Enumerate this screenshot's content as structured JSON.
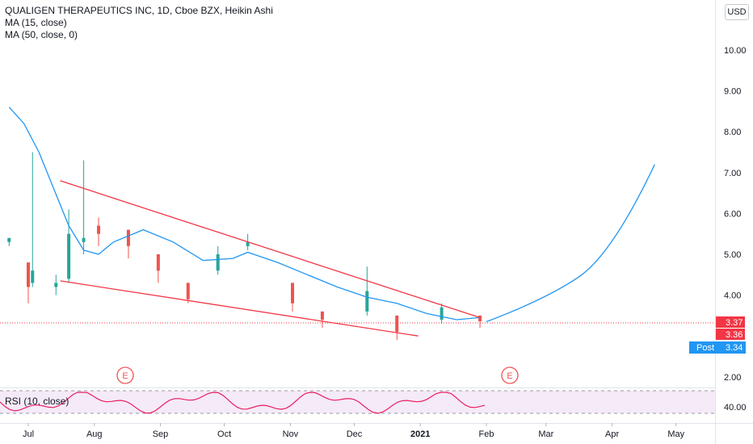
{
  "legend": {
    "title": "QUALIGEN THERAPEUTICS INC, 1D, Cboe BZX, Heikin Ashi",
    "ma15": "MA (15, close)",
    "ma50": "MA (50, close, 0)",
    "rsi": "RSI (10, close)"
  },
  "currency_button": "USD",
  "colors": {
    "up": "#26a69a",
    "down": "#ef5350",
    "ma": "#2196f3",
    "trendline": "#f23645",
    "projection": "#2196f3",
    "rsi_line": "#e91e63",
    "rsi_band": "#f3e5f5",
    "price_label": "#f23645",
    "post_label": "#2196f3"
  },
  "price_labels": {
    "close_a": "3.37",
    "close_b": "3.36",
    "post_name": "Post",
    "post_value": "3.34"
  },
  "earnings_marker": "E",
  "chart_data": {
    "type": "candlestick",
    "y_axis_ticks": [
      "10.00",
      "9.00",
      "8.00",
      "7.00",
      "6.00",
      "5.00",
      "4.00",
      "2.00"
    ],
    "ylim": [
      1.8,
      11.5
    ],
    "x_axis_ticks": [
      "Jul",
      "Aug",
      "Sep",
      "Oct",
      "Nov",
      "Dec",
      "2021",
      "Feb",
      "Mar",
      "Apr",
      "May"
    ],
    "rsi_axis_tick": "40.00",
    "ma15": [
      [
        "2020-06-22",
        8.6
      ],
      [
        "2020-06-29",
        8.2
      ],
      [
        "2020-07-06",
        7.5
      ],
      [
        "2020-07-13",
        6.6
      ],
      [
        "2020-07-20",
        5.7
      ],
      [
        "2020-07-27",
        5.1
      ],
      [
        "2020-08-03",
        5.0
      ],
      [
        "2020-08-10",
        5.3
      ],
      [
        "2020-08-24",
        5.6
      ],
      [
        "2020-09-07",
        5.3
      ],
      [
        "2020-09-21",
        4.85
      ],
      [
        "2020-10-05",
        4.9
      ],
      [
        "2020-10-12",
        5.05
      ],
      [
        "2020-10-26",
        4.8
      ],
      [
        "2020-11-09",
        4.5
      ],
      [
        "2020-11-23",
        4.2
      ],
      [
        "2020-12-07",
        3.95
      ],
      [
        "2020-12-21",
        3.8
      ],
      [
        "2021-01-04",
        3.55
      ],
      [
        "2021-01-18",
        3.4
      ],
      [
        "2021-01-29",
        3.45
      ]
    ],
    "trendlines": [
      {
        "name": "upper",
        "from": [
          "2020-07-16",
          6.8
        ],
        "to": [
          "2021-01-29",
          3.45
        ]
      },
      {
        "name": "lower",
        "from": [
          "2020-07-16",
          4.35
        ],
        "to": [
          "2020-12-31",
          3.0
        ]
      }
    ],
    "projection_curve": [
      [
        "2021-02-01",
        3.35
      ],
      [
        "2021-03-01",
        3.9
      ],
      [
        "2021-04-01",
        5.0
      ],
      [
        "2021-04-21",
        7.2
      ]
    ],
    "candles": [
      [
        "2020-06-22",
        5.4,
        5.3,
        5.4,
        5.2,
        "up"
      ],
      [
        "2020-07-01",
        4.8,
        4.2,
        4.8,
        3.8,
        "down"
      ],
      [
        "2020-07-03",
        4.3,
        4.6,
        7.5,
        4.2,
        "up"
      ],
      [
        "2020-07-14",
        4.2,
        4.3,
        4.5,
        4.0,
        "up"
      ],
      [
        "2020-07-20",
        4.4,
        5.5,
        6.1,
        4.3,
        "up"
      ],
      [
        "2020-07-27",
        5.3,
        5.4,
        7.3,
        5.0,
        "up"
      ],
      [
        "2020-08-03",
        5.7,
        5.5,
        5.9,
        5.2,
        "down"
      ],
      [
        "2020-08-17",
        5.6,
        5.2,
        5.6,
        4.9,
        "down"
      ],
      [
        "2020-08-31",
        5.0,
        4.6,
        5.0,
        4.3,
        "down"
      ],
      [
        "2020-09-14",
        4.3,
        3.9,
        4.3,
        3.8,
        "down"
      ],
      [
        "2020-09-28",
        4.6,
        5.0,
        5.2,
        4.5,
        "up"
      ],
      [
        "2020-10-12",
        5.2,
        5.3,
        5.5,
        5.1,
        "up"
      ],
      [
        "2020-11-02",
        4.3,
        3.8,
        4.3,
        3.6,
        "down"
      ],
      [
        "2020-11-16",
        3.6,
        3.4,
        3.6,
        3.2,
        "down"
      ],
      [
        "2020-12-07",
        3.6,
        4.1,
        4.7,
        3.5,
        "up"
      ],
      [
        "2020-12-21",
        3.5,
        3.1,
        3.5,
        2.9,
        "down"
      ],
      [
        "2021-01-11",
        3.4,
        3.7,
        3.8,
        3.3,
        "up"
      ],
      [
        "2021-01-29",
        3.5,
        3.36,
        3.5,
        3.2,
        "down"
      ]
    ]
  }
}
